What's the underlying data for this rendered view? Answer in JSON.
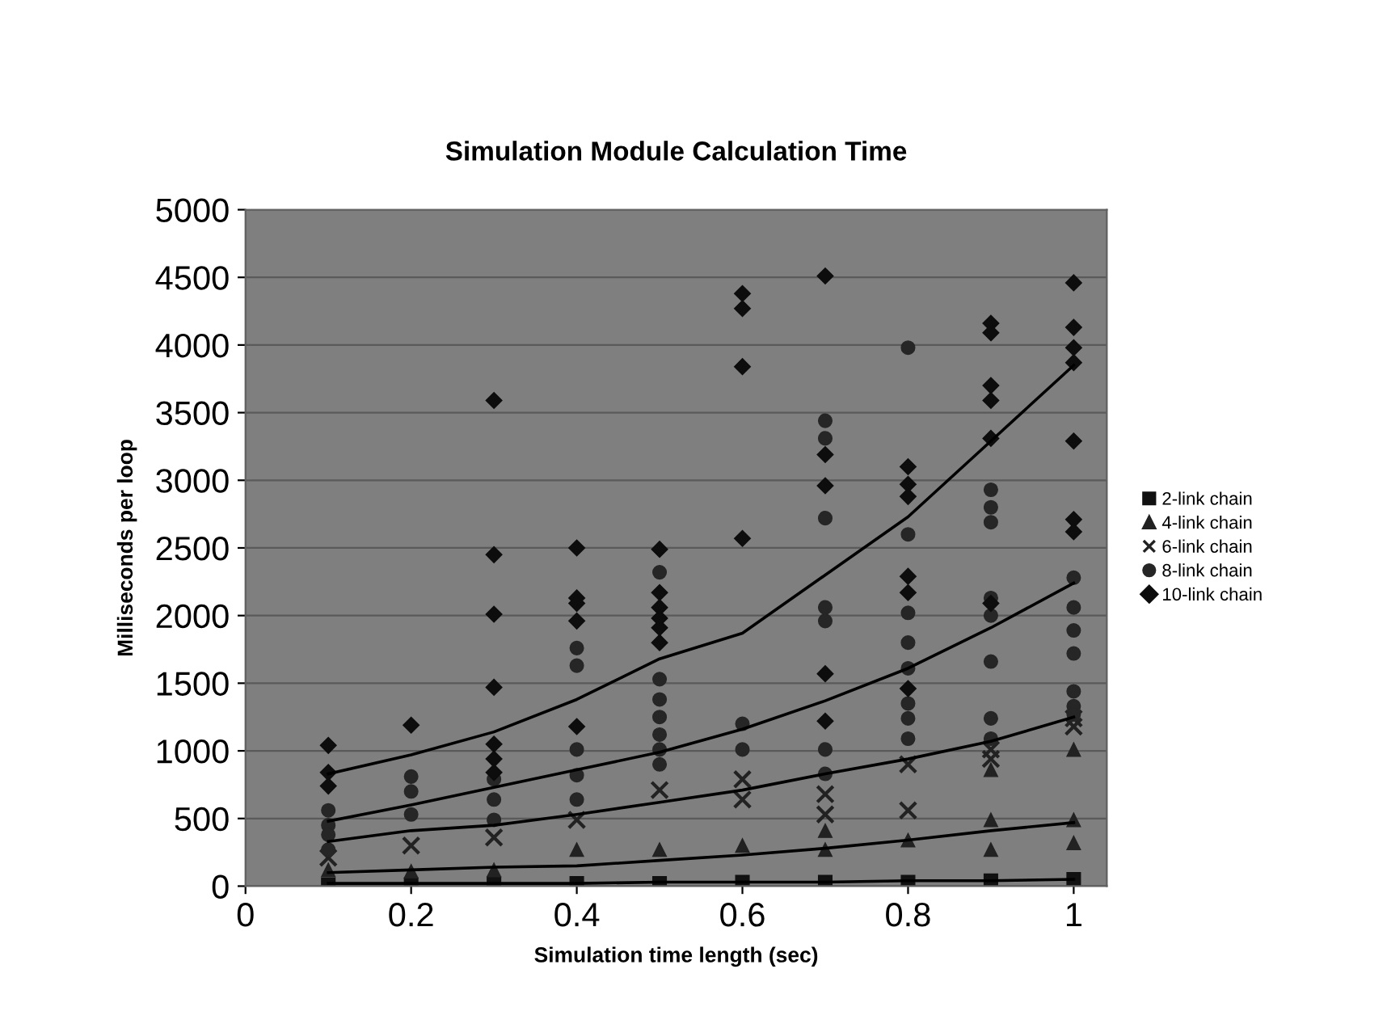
{
  "chart_data": {
    "type": "scatter",
    "title": "Simulation Module Calculation Time",
    "xlabel": "Simulation time length (sec)",
    "ylabel": "Milliseconds per loop",
    "xlim": [
      0,
      1.04
    ],
    "xticks": [
      0,
      0.2,
      0.4,
      0.6,
      0.8,
      1
    ],
    "ylim": [
      0,
      5000
    ],
    "yticks": [
      0,
      500,
      1000,
      1500,
      2000,
      2500,
      3000,
      3500,
      4000,
      4500,
      5000
    ],
    "grid": "y",
    "legend": "right",
    "series": [
      {
        "name": "2-link chain",
        "type": "scatter",
        "marker": "square",
        "color": "#111111",
        "x": [
          0.1,
          0.2,
          0.3,
          0.4,
          0.5,
          0.6,
          0.7,
          0.8,
          0.9,
          1.0
        ],
        "values": [
          10,
          10,
          20,
          20,
          20,
          30,
          30,
          30,
          40,
          50
        ]
      },
      {
        "name": "4-link chain",
        "type": "scatter",
        "marker": "triangle",
        "color": "#222222",
        "x": [
          0.1,
          0.2,
          0.3,
          0.4,
          0.5,
          0.6,
          0.7,
          0.7,
          0.8,
          0.9,
          0.9,
          0.9,
          1.0,
          1.0,
          1.0
        ],
        "values": [
          120,
          110,
          120,
          270,
          270,
          300,
          410,
          270,
          340,
          860,
          490,
          270,
          1010,
          490,
          320
        ]
      },
      {
        "name": "6-link chain",
        "type": "scatter",
        "marker": "cross",
        "color": "#222222",
        "x": [
          0.1,
          0.2,
          0.3,
          0.4,
          0.5,
          0.6,
          0.6,
          0.7,
          0.7,
          0.8,
          0.8,
          0.9,
          0.9,
          1.0,
          1.0
        ],
        "values": [
          210,
          300,
          360,
          490,
          710,
          790,
          640,
          680,
          530,
          900,
          560,
          1010,
          940,
          1240,
          1180
        ]
      },
      {
        "name": "8-link chain",
        "type": "scatter",
        "marker": "circle",
        "color": "#262626",
        "x": [
          0.1,
          0.1,
          0.1,
          0.1,
          0.2,
          0.2,
          0.2,
          0.3,
          0.3,
          0.3,
          0.4,
          0.4,
          0.4,
          0.4,
          0.4,
          0.5,
          0.5,
          0.5,
          0.5,
          0.5,
          0.5,
          0.5,
          0.6,
          0.6,
          0.7,
          0.7,
          0.7,
          0.7,
          0.7,
          0.7,
          0.7,
          0.8,
          0.8,
          0.8,
          0.8,
          0.8,
          0.8,
          0.8,
          0.8,
          0.9,
          0.9,
          0.9,
          0.9,
          0.9,
          0.9,
          0.9,
          0.9,
          1.0,
          1.0,
          1.0,
          1.0,
          1.0,
          1.0,
          1.0
        ],
        "values": [
          560,
          450,
          380,
          270,
          810,
          700,
          530,
          790,
          640,
          490,
          1760,
          1630,
          1010,
          820,
          640,
          2320,
          1530,
          1380,
          1250,
          1120,
          1010,
          900,
          1200,
          1010,
          3440,
          3310,
          2720,
          2060,
          1960,
          1010,
          830,
          3980,
          2600,
          2020,
          1800,
          1610,
          1350,
          1240,
          1090,
          2930,
          2800,
          2690,
          2130,
          2000,
          1660,
          1240,
          1090,
          2280,
          2060,
          1890,
          1720,
          1440,
          1330,
          1270
        ]
      },
      {
        "name": "10-link chain",
        "type": "scatter",
        "marker": "diamond",
        "color": "#0d0d0d",
        "x": [
          0.1,
          0.1,
          0.1,
          0.2,
          0.3,
          0.3,
          0.3,
          0.3,
          0.3,
          0.3,
          0.3,
          0.4,
          0.4,
          0.4,
          0.4,
          0.4,
          0.5,
          0.5,
          0.5,
          0.5,
          0.5,
          0.5,
          0.6,
          0.6,
          0.6,
          0.6,
          0.7,
          0.7,
          0.7,
          0.7,
          0.7,
          0.8,
          0.8,
          0.8,
          0.8,
          0.8,
          0.8,
          0.9,
          0.9,
          0.9,
          0.9,
          0.9,
          0.9,
          1.0,
          1.0,
          1.0,
          1.0,
          1.0,
          1.0,
          1.0
        ],
        "values": [
          1040,
          840,
          740,
          1190,
          3590,
          2450,
          2010,
          1470,
          1050,
          940,
          840,
          2500,
          2130,
          2090,
          1960,
          1180,
          2490,
          2170,
          2060,
          1980,
          1910,
          1800,
          4380,
          4270,
          3840,
          2570,
          4510,
          3190,
          2960,
          1570,
          1220,
          3100,
          2970,
          2880,
          2290,
          2170,
          1460,
          4160,
          4090,
          3700,
          3590,
          3310,
          2090,
          4460,
          4130,
          3980,
          3870,
          3290,
          2710,
          2620
        ]
      },
      {
        "type": "line",
        "color": "#000000",
        "x": [
          0.1,
          0.2,
          0.3,
          0.4,
          0.5,
          0.6,
          0.7,
          0.8,
          0.9,
          1.0
        ],
        "values": [
          20,
          20,
          20,
          20,
          30,
          30,
          30,
          40,
          40,
          50
        ]
      },
      {
        "type": "line",
        "color": "#000000",
        "x": [
          0.1,
          0.2,
          0.3,
          0.4,
          0.5,
          0.6,
          0.7,
          0.8,
          0.9,
          1.0
        ],
        "values": [
          100,
          120,
          140,
          150,
          190,
          230,
          280,
          340,
          410,
          470
        ]
      },
      {
        "type": "line",
        "color": "#000000",
        "x": [
          0.1,
          0.2,
          0.3,
          0.4,
          0.5,
          0.6,
          0.7,
          0.8,
          0.9,
          1.0
        ],
        "values": [
          330,
          410,
          450,
          530,
          620,
          710,
          830,
          940,
          1070,
          1250
        ]
      },
      {
        "type": "line",
        "color": "#000000",
        "x": [
          0.1,
          0.2,
          0.3,
          0.4,
          0.5,
          0.6,
          0.7,
          0.8,
          0.9,
          1.0
        ],
        "values": [
          480,
          600,
          730,
          860,
          990,
          1160,
          1370,
          1610,
          1910,
          2240
        ]
      },
      {
        "type": "line",
        "color": "#000000",
        "x": [
          0.1,
          0.2,
          0.3,
          0.4,
          0.5,
          0.6,
          0.7,
          0.8,
          0.9,
          1.0
        ],
        "values": [
          830,
          970,
          1140,
          1380,
          1680,
          1870,
          2300,
          2730,
          3290,
          3850
        ]
      }
    ]
  }
}
